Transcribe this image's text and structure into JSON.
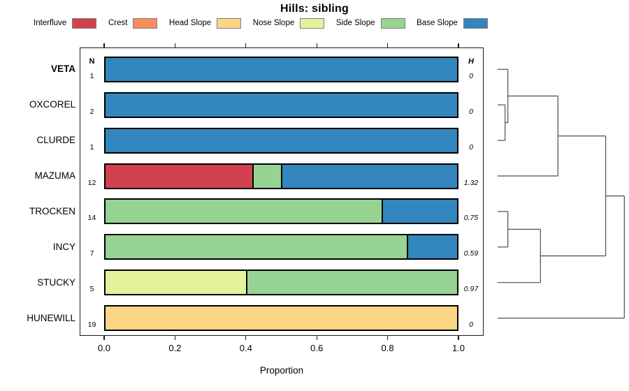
{
  "title": "Hills: sibling",
  "legend": {
    "items": [
      {
        "label": "Interfluve",
        "color": "#D2414F"
      },
      {
        "label": "Crest",
        "color": "#FA8C5A"
      },
      {
        "label": "Head Slope",
        "color": "#FCD682"
      },
      {
        "label": "Nose Slope",
        "color": "#E2F39B"
      },
      {
        "label": "Side Slope",
        "color": "#97D392"
      },
      {
        "label": "Base Slope",
        "color": "#3386BD"
      }
    ]
  },
  "chart_data": {
    "type": "bar",
    "variant": "horizontal-stacked-proportion",
    "title": "Hills: sibling",
    "xlabel": "Proportion",
    "xlim": [
      0,
      1
    ],
    "x_tick_labels": [
      "0.0",
      "0.2",
      "0.4",
      "0.6",
      "0.8",
      "1.0"
    ],
    "x_tick_values": [
      0.0,
      0.2,
      0.4,
      0.6,
      0.8,
      1.0
    ],
    "categories": [
      "Interfluve",
      "Crest",
      "Head Slope",
      "Nose Slope",
      "Side Slope",
      "Base Slope"
    ],
    "category_colors": {
      "Interfluve": "#D2414F",
      "Crest": "#FA8C5A",
      "Head Slope": "#FCD682",
      "Nose Slope": "#E2F39B",
      "Side Slope": "#97D392",
      "Base Slope": "#3386BD"
    },
    "columns": {
      "n_header": "N",
      "h_header": "H"
    },
    "rows": [
      {
        "name": "VETA",
        "bold": true,
        "n": "1",
        "h": "0",
        "segments": [
          {
            "category": "Base Slope",
            "value": 1.0
          }
        ]
      },
      {
        "name": "OXCOREL",
        "bold": false,
        "n": "2",
        "h": "0",
        "segments": [
          {
            "category": "Base Slope",
            "value": 1.0
          }
        ]
      },
      {
        "name": "CLURDE",
        "bold": false,
        "n": "1",
        "h": "0",
        "segments": [
          {
            "category": "Base Slope",
            "value": 1.0
          }
        ]
      },
      {
        "name": "MAZUMA",
        "bold": false,
        "n": "12",
        "h": "1.32",
        "segments": [
          {
            "category": "Interfluve",
            "value": 0.4167
          },
          {
            "category": "Side Slope",
            "value": 0.0833
          },
          {
            "category": "Base Slope",
            "value": 0.5
          }
        ]
      },
      {
        "name": "TROCKEN",
        "bold": false,
        "n": "14",
        "h": "0.75",
        "segments": [
          {
            "category": "Side Slope",
            "value": 0.7857
          },
          {
            "category": "Base Slope",
            "value": 0.2143
          }
        ]
      },
      {
        "name": "INCY",
        "bold": false,
        "n": "7",
        "h": "0.59",
        "segments": [
          {
            "category": "Side Slope",
            "value": 0.8571
          },
          {
            "category": "Base Slope",
            "value": 0.1429
          }
        ]
      },
      {
        "name": "STUCKY",
        "bold": false,
        "n": "5",
        "h": "0.97",
        "segments": [
          {
            "category": "Nose Slope",
            "value": 0.4
          },
          {
            "category": "Side Slope",
            "value": 0.6
          }
        ]
      },
      {
        "name": "HUNEWILL",
        "bold": false,
        "n": "19",
        "h": "0",
        "segments": [
          {
            "category": "Head Slope",
            "value": 1.0
          }
        ]
      }
    ],
    "dendrogram": {
      "note": "right-side clustering tree; height_frac is merge height relative to full tree depth",
      "root": {
        "height_frac": 1.0,
        "children": [
          {
            "height_frac": 0.853,
            "children": [
              {
                "height_frac": 0.476,
                "children": [
                  {
                    "height_frac": 0.081,
                    "children": [
                      {
                        "leaf": "VETA"
                      },
                      {
                        "height_frac": 0.059,
                        "children": [
                          {
                            "leaf": "OXCOREL"
                          },
                          {
                            "leaf": "CLURDE"
                          }
                        ]
                      }
                    ]
                  },
                  {
                    "leaf": "MAZUMA"
                  }
                ]
              },
              {
                "height_frac": 0.338,
                "children": [
                  {
                    "height_frac": 0.081,
                    "children": [
                      {
                        "leaf": "TROCKEN"
                      },
                      {
                        "leaf": "INCY"
                      }
                    ]
                  },
                  {
                    "leaf": "STUCKY"
                  }
                ]
              }
            ]
          },
          {
            "leaf": "HUNEWILL"
          }
        ]
      }
    }
  }
}
